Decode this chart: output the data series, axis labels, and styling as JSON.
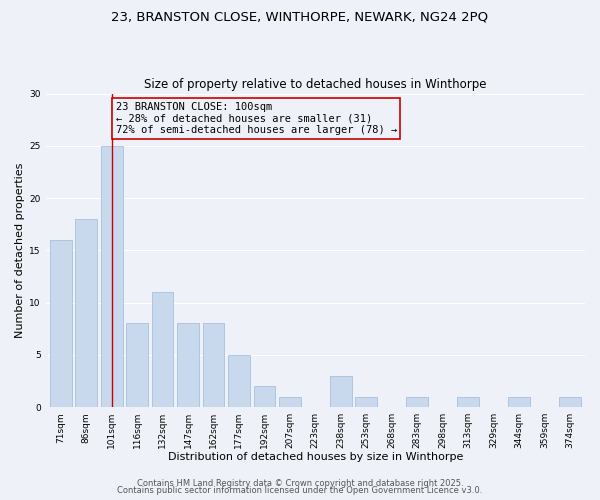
{
  "title1": "23, BRANSTON CLOSE, WINTHORPE, NEWARK, NG24 2PQ",
  "title2": "Size of property relative to detached houses in Winthorpe",
  "xlabel": "Distribution of detached houses by size in Winthorpe",
  "ylabel": "Number of detached properties",
  "categories": [
    "71sqm",
    "86sqm",
    "101sqm",
    "116sqm",
    "132sqm",
    "147sqm",
    "162sqm",
    "177sqm",
    "192sqm",
    "207sqm",
    "223sqm",
    "238sqm",
    "253sqm",
    "268sqm",
    "283sqm",
    "298sqm",
    "313sqm",
    "329sqm",
    "344sqm",
    "359sqm",
    "374sqm"
  ],
  "values": [
    16,
    18,
    25,
    8,
    11,
    8,
    8,
    5,
    2,
    1,
    0,
    3,
    1,
    0,
    1,
    0,
    1,
    0,
    1,
    0,
    1
  ],
  "bar_color": "#c8d9ee",
  "bar_edge_color": "#9fb8d8",
  "highlight_index": 2,
  "highlight_line_color": "#cc0000",
  "annotation_line1": "23 BRANSTON CLOSE: 100sqm",
  "annotation_line2": "← 28% of detached houses are smaller (31)",
  "annotation_line3": "72% of semi-detached houses are larger (78) →",
  "annotation_box_edge": "#cc0000",
  "annotation_fontsize": 7.5,
  "ylim": [
    0,
    30
  ],
  "yticks": [
    0,
    5,
    10,
    15,
    20,
    25,
    30
  ],
  "background_color": "#eef2f8",
  "grid_color": "#ffffff",
  "footer1": "Contains HM Land Registry data © Crown copyright and database right 2025.",
  "footer2": "Contains public sector information licensed under the Open Government Licence v3.0.",
  "title_fontsize": 9.5,
  "subtitle_fontsize": 8.5,
  "axis_label_fontsize": 8,
  "tick_fontsize": 6.5,
  "footer_fontsize": 6.0
}
